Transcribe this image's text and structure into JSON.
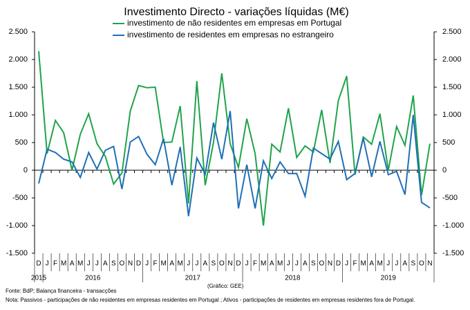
{
  "chart_data": {
    "type": "line",
    "title": "Investimento Directo - variações líquidas (M€)",
    "categories": [
      "D",
      "J",
      "F",
      "M",
      "A",
      "M",
      "J",
      "J",
      "A",
      "S",
      "O",
      "N",
      "D",
      "J",
      "F",
      "M",
      "A",
      "M",
      "J",
      "J",
      "A",
      "S",
      "O",
      "N",
      "D",
      "J",
      "F",
      "M",
      "A",
      "M",
      "J",
      "J",
      "A",
      "S",
      "O",
      "N",
      "D",
      "J",
      "F",
      "M",
      "A",
      "M",
      "J",
      "J",
      "A",
      "S",
      "O",
      "N"
    ],
    "years": [
      "2015",
      "2016",
      "2017",
      "2018",
      "2019"
    ],
    "series": [
      {
        "name": "investimento de não residentes em empresas em Portugal",
        "color": "#1fa34a",
        "values": [
          2150,
          300,
          900,
          680,
          0,
          650,
          1020,
          480,
          250,
          -250,
          -50,
          1070,
          1530,
          1490,
          1500,
          500,
          510,
          1160,
          -600,
          1610,
          -270,
          500,
          1750,
          480,
          50,
          930,
          300,
          -1000,
          470,
          330,
          1120,
          230,
          440,
          330,
          1090,
          130,
          1260,
          1700,
          -80,
          600,
          470,
          1020,
          0,
          790,
          450,
          1350,
          -450,
          480
        ]
      },
      {
        "name": "investimento de residentes em empresas no estrangeiro",
        "color": "#1f6fb5",
        "values": [
          -240,
          380,
          320,
          200,
          150,
          -130,
          320,
          20,
          360,
          430,
          -340,
          510,
          610,
          290,
          100,
          570,
          -270,
          420,
          -830,
          220,
          -70,
          860,
          200,
          1070,
          -690,
          100,
          -690,
          170,
          -150,
          150,
          -60,
          -60,
          -470,
          400,
          300,
          200,
          520,
          -170,
          -60,
          580,
          -120,
          520,
          -80,
          -20,
          -440,
          1000,
          -580,
          -680
        ]
      }
    ],
    "ylim": [
      -1500,
      2500
    ],
    "yticks": [
      {
        "value": -1500,
        "label": "-1.500"
      },
      {
        "value": -1000,
        "label": "-1.000"
      },
      {
        "value": -500,
        "label": "-500"
      },
      0,
      500,
      {
        "value": 1000,
        "label": "1.000"
      },
      {
        "value": 1500,
        "label": "1.500"
      },
      {
        "value": 2000,
        "label": "2.000"
      },
      {
        "value": 2500,
        "label": "2.500"
      }
    ],
    "y2lim": [
      -1500,
      2500
    ],
    "y2ticks": [
      {
        "value": -1500,
        "label": "-1.500"
      },
      {
        "value": -1000,
        "label": "-1.000"
      },
      {
        "value": -500,
        "label": "-500"
      },
      0,
      500,
      {
        "value": 1000,
        "label": "1.000"
      },
      {
        "value": 1500,
        "label": "1.500"
      },
      {
        "value": 2000,
        "label": "2.000"
      },
      {
        "value": 2500,
        "label": "2.500"
      }
    ],
    "source": "Fonte: BdP; Balança financeira - transacções",
    "credit": "(Gráfico: GEE)",
    "note": "Nota: Passivos - participações de não residentes em empresas residentes em Portugal ; Ativos - participações de residentes em empresas residentes fora de Portugal."
  }
}
